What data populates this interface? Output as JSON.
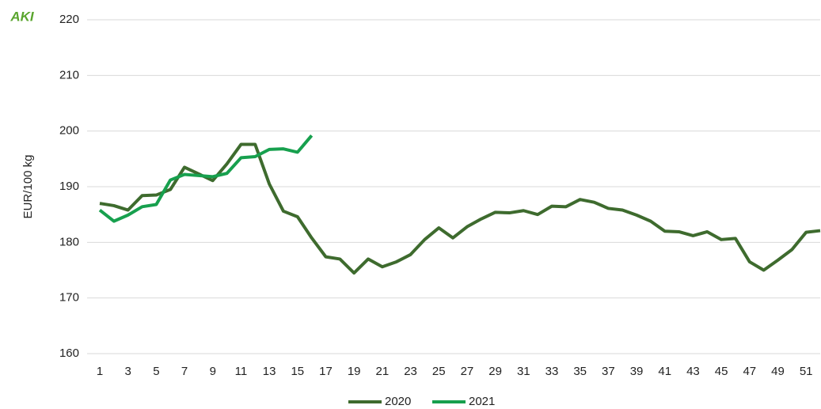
{
  "chart_data": {
    "type": "line",
    "logo": "AKI",
    "y_label": "EUR/100 kg",
    "x": [
      1,
      2,
      3,
      4,
      5,
      6,
      7,
      8,
      9,
      10,
      11,
      12,
      13,
      14,
      15,
      16,
      17,
      18,
      19,
      20,
      21,
      22,
      23,
      24,
      25,
      26,
      27,
      28,
      29,
      30,
      31,
      32,
      33,
      34,
      35,
      36,
      37,
      38,
      39,
      40,
      41,
      42,
      43,
      44,
      45,
      46,
      47,
      48,
      49,
      50,
      51,
      52
    ],
    "series": [
      {
        "name": "2020",
        "color": "#3e6b2e",
        "values": [
          187.0,
          186.6,
          185.8,
          188.4,
          188.5,
          189.5,
          193.5,
          192.3,
          191.1,
          194.1,
          197.6,
          197.6,
          190.5,
          185.6,
          184.6,
          180.8,
          177.4,
          177.0,
          174.5,
          177.0,
          175.6,
          176.5,
          177.8,
          180.5,
          182.6,
          180.8,
          182.8,
          184.2,
          185.4,
          185.3,
          185.7,
          185.0,
          186.5,
          186.4,
          187.7,
          187.2,
          186.1,
          185.8,
          184.9,
          183.8,
          182.0,
          181.9,
          181.2,
          181.9,
          180.5,
          180.7,
          176.5,
          175.0,
          176.8,
          178.7,
          181.8,
          182.1
        ]
      },
      {
        "name": "2021",
        "color": "#17a04e",
        "values": [
          185.8,
          183.8,
          184.9,
          186.4,
          186.8,
          191.2,
          192.2,
          192.0,
          191.8,
          192.4,
          195.2,
          195.4,
          196.7,
          196.8,
          196.2,
          199.2,
          null,
          null,
          null,
          null,
          null,
          null,
          null,
          null,
          null,
          null,
          null,
          null,
          null,
          null,
          null,
          null,
          null,
          null,
          null,
          null,
          null,
          null,
          null,
          null,
          null,
          null,
          null,
          null,
          null,
          null,
          null,
          null,
          null,
          null,
          null,
          null
        ]
      }
    ],
    "xlim": [
      1,
      52
    ],
    "xticks": [
      1,
      3,
      5,
      7,
      9,
      11,
      13,
      15,
      17,
      19,
      21,
      23,
      25,
      27,
      29,
      31,
      33,
      35,
      37,
      39,
      41,
      43,
      45,
      47,
      49,
      51
    ],
    "ylim": [
      160,
      220
    ],
    "yticks": [
      160,
      170,
      180,
      190,
      200,
      210,
      220
    ],
    "grid": true,
    "legend": "bottom"
  }
}
